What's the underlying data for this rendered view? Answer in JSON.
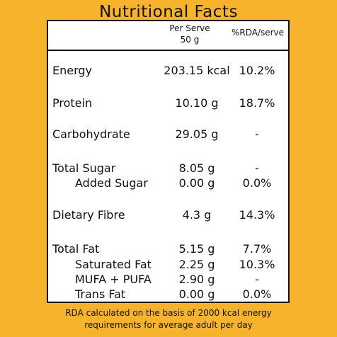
{
  "title": "Nutritional Facts",
  "header": {
    "per_serve_line1": "Per Serve",
    "per_serve_line2": "50 g",
    "rda": "%RDA/serve"
  },
  "rows": [
    {
      "name": "Energy",
      "value": "203.15 kcal",
      "rda": "10.2%"
    },
    {
      "name": "Protein",
      "value": "10.10 g",
      "rda": "18.7%"
    },
    {
      "name": "Carbohydrate",
      "value": "29.05 g",
      "rda": "-"
    },
    {
      "name": "Total Sugar",
      "value": "8.05 g",
      "rda": "-"
    },
    {
      "name": "Added Sugar",
      "value": "0.00 g",
      "rda": "0.0%"
    },
    {
      "name": "Dietary Fibre",
      "value": "4.3 g",
      "rda": "14.3%"
    },
    {
      "name": "Total Fat",
      "value": "5.15 g",
      "rda": "7.7%"
    },
    {
      "name": "Saturated Fat",
      "value": "2.25 g",
      "rda": "10.3%"
    },
    {
      "name": "MUFA + PUFA",
      "value": "2.90 g",
      "rda": "-"
    },
    {
      "name": "Trans Fat",
      "value": "0.00 g",
      "rda": "0.0%"
    }
  ],
  "footer": {
    "line1": "RDA calculated on the basis of 2000 kcal energy",
    "line2": "requirements for average adult per day"
  }
}
